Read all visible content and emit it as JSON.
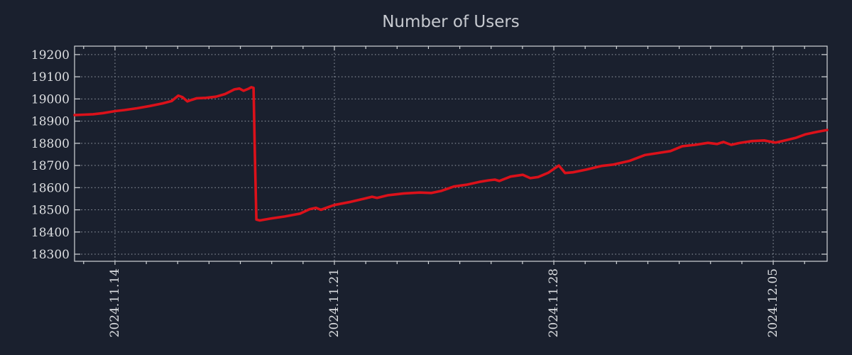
{
  "title": "Number of Users",
  "colors": {
    "background": "#1a202e",
    "line": "#db111a",
    "grid": "#9aa1ab",
    "border": "#d2d5d9",
    "title_text": "#c7cad0",
    "tick_text": "#dcdee1"
  },
  "chart_data": {
    "type": "line",
    "title": "Number of Users",
    "xlabel": "",
    "ylabel": "",
    "grid": "dotted, on both axes at major ticks",
    "legend": "none",
    "x_axis": {
      "unit": "date",
      "tick_labels": [
        "2024.11.14",
        "2024.11.21",
        "2024.11.28",
        "2024.12.05"
      ],
      "tick_positions_days": [
        1.29,
        8.29,
        15.29,
        22.29
      ],
      "minor_tick_start_days": 0.29,
      "minor_tick_interval_days": 1,
      "range_days": [
        0,
        24.01
      ],
      "label_rotation_deg": -90
    },
    "y_axis": {
      "ticks": [
        19200,
        19100,
        19000,
        18900,
        18800,
        18700,
        18600,
        18500,
        18400,
        18300
      ],
      "range": [
        18268,
        19238
      ]
    },
    "series": [
      {
        "name": "users",
        "color": "#db111a",
        "points": [
          [
            0.0,
            18927
          ],
          [
            0.29,
            18929
          ],
          [
            0.59,
            18931
          ],
          [
            0.91,
            18936
          ],
          [
            1.29,
            18945
          ],
          [
            1.59,
            18950
          ],
          [
            1.99,
            18958
          ],
          [
            2.4,
            18968
          ],
          [
            2.81,
            18980
          ],
          [
            3.1,
            18991
          ],
          [
            3.31,
            19015
          ],
          [
            3.44,
            19008
          ],
          [
            3.6,
            18989
          ],
          [
            3.74,
            18996
          ],
          [
            3.9,
            19003
          ],
          [
            4.19,
            19005
          ],
          [
            4.51,
            19010
          ],
          [
            4.8,
            19022
          ],
          [
            5.1,
            19043
          ],
          [
            5.26,
            19047
          ],
          [
            5.39,
            19037
          ],
          [
            5.55,
            19046
          ],
          [
            5.64,
            19053
          ],
          [
            5.71,
            19050
          ],
          [
            5.75,
            18760
          ],
          [
            5.8,
            18456
          ],
          [
            5.91,
            18452
          ],
          [
            6.23,
            18460
          ],
          [
            6.71,
            18470
          ],
          [
            7.2,
            18483
          ],
          [
            7.5,
            18503
          ],
          [
            7.7,
            18509
          ],
          [
            7.86,
            18500
          ],
          [
            8.11,
            18513
          ],
          [
            8.29,
            18522
          ],
          [
            8.81,
            18536
          ],
          [
            9.2,
            18549
          ],
          [
            9.49,
            18559
          ],
          [
            9.65,
            18554
          ],
          [
            10.01,
            18566
          ],
          [
            10.51,
            18574
          ],
          [
            11.01,
            18578
          ],
          [
            11.39,
            18576
          ],
          [
            11.71,
            18586
          ],
          [
            12.1,
            18605
          ],
          [
            12.5,
            18613
          ],
          [
            12.91,
            18626
          ],
          [
            13.21,
            18633
          ],
          [
            13.41,
            18636
          ],
          [
            13.55,
            18630
          ],
          [
            13.91,
            18650
          ],
          [
            14.3,
            18658
          ],
          [
            14.54,
            18643
          ],
          [
            14.79,
            18648
          ],
          [
            15.11,
            18667
          ],
          [
            15.45,
            18700
          ],
          [
            15.65,
            18666
          ],
          [
            15.9,
            18669
          ],
          [
            16.31,
            18681
          ],
          [
            16.81,
            18698
          ],
          [
            17.19,
            18704
          ],
          [
            17.69,
            18720
          ],
          [
            18.19,
            18747
          ],
          [
            18.6,
            18756
          ],
          [
            19.01,
            18765
          ],
          [
            19.39,
            18787
          ],
          [
            19.8,
            18793
          ],
          [
            20.21,
            18802
          ],
          [
            20.5,
            18797
          ],
          [
            20.7,
            18806
          ],
          [
            20.95,
            18793
          ],
          [
            21.2,
            18801
          ],
          [
            21.61,
            18810
          ],
          [
            22.0,
            18813
          ],
          [
            22.36,
            18803
          ],
          [
            22.61,
            18811
          ],
          [
            23.0,
            18824
          ],
          [
            23.31,
            18840
          ],
          [
            23.7,
            18852
          ],
          [
            24.01,
            18860
          ]
        ]
      }
    ]
  }
}
